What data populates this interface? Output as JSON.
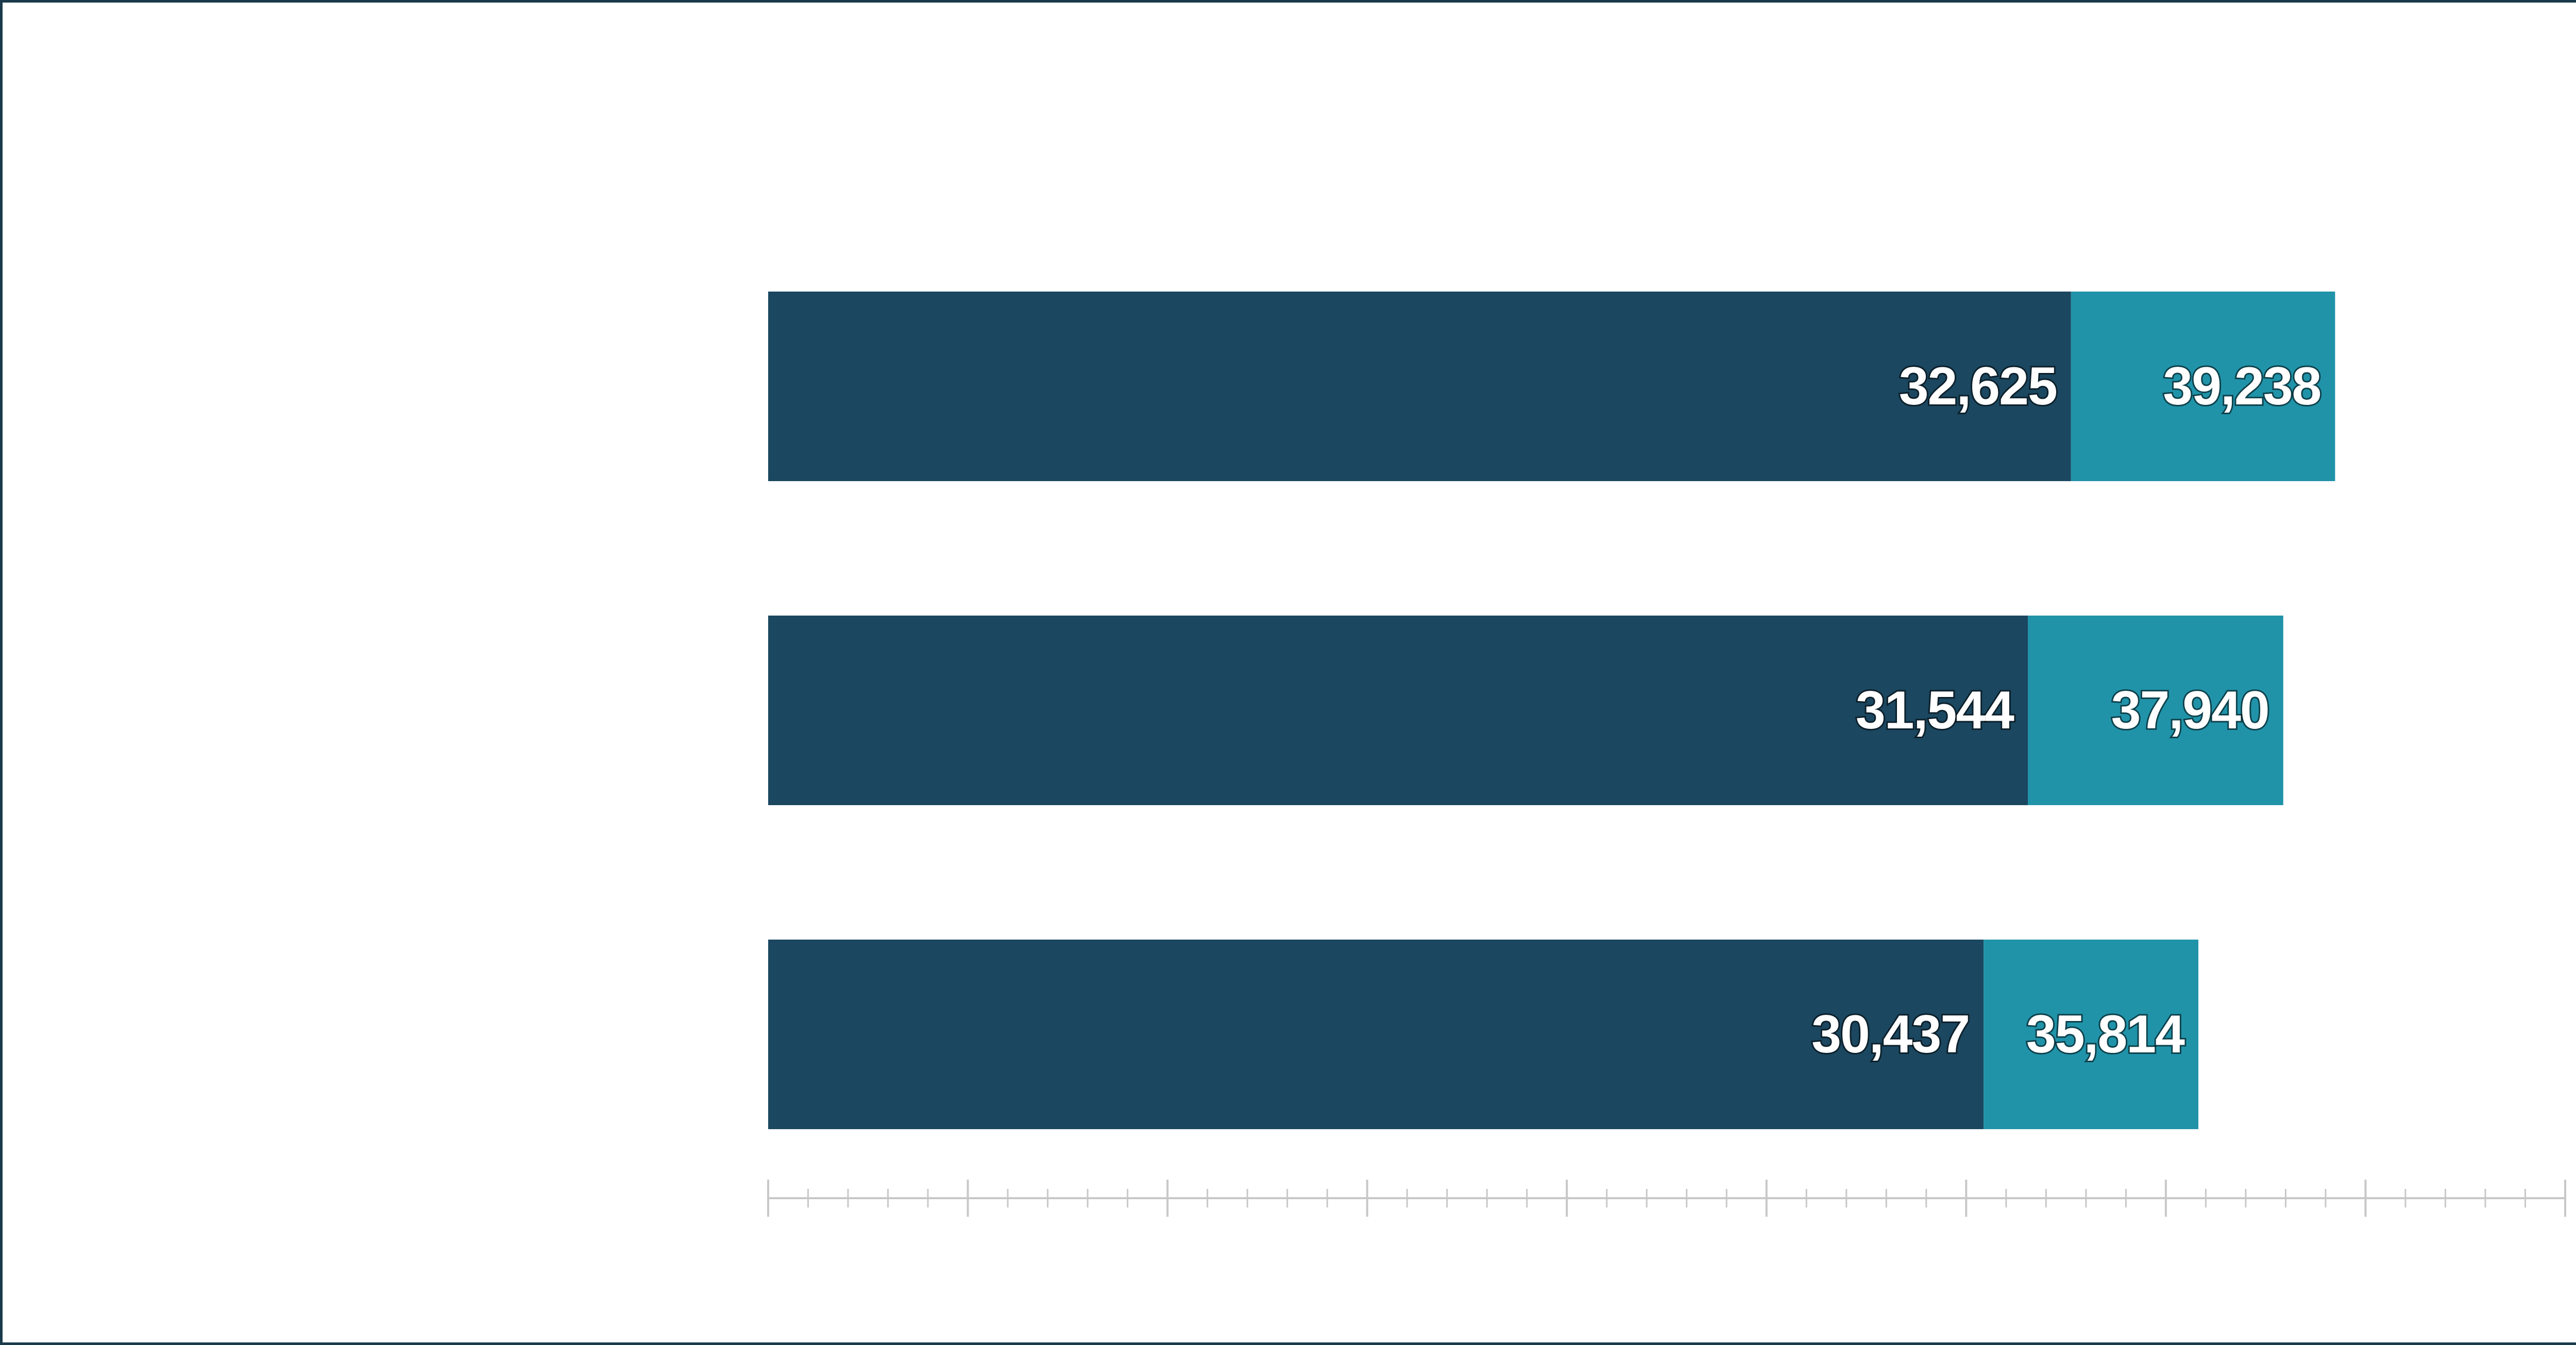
{
  "colors": {
    "series1": "#1b4760",
    "series2": "#2093a9",
    "axis": "#c8c8c8",
    "frame": "#1b3a4b"
  },
  "chart_data": {
    "type": "bar",
    "orientation": "horizontal",
    "stacked": true,
    "title": "",
    "xlabel": "",
    "ylabel": "",
    "categories": [
      "",
      "",
      ""
    ],
    "series": [
      {
        "name": "",
        "values": [
          32625,
          31544,
          30437
        ],
        "labels": [
          "32,625",
          "31,544",
          "30,437"
        ]
      },
      {
        "name": "",
        "values": [
          6613,
          6396,
          5377
        ],
        "labels": [
          "39,238",
          "37,940",
          "35,814"
        ]
      }
    ],
    "cumulative_totals": [
      39238,
      37940,
      35814
    ],
    "xlim": [
      0,
      45000
    ],
    "major_tick_step": 5000,
    "minor_tick_step": 1000,
    "show_tick_labels": false,
    "grid": false,
    "legend": "none"
  }
}
